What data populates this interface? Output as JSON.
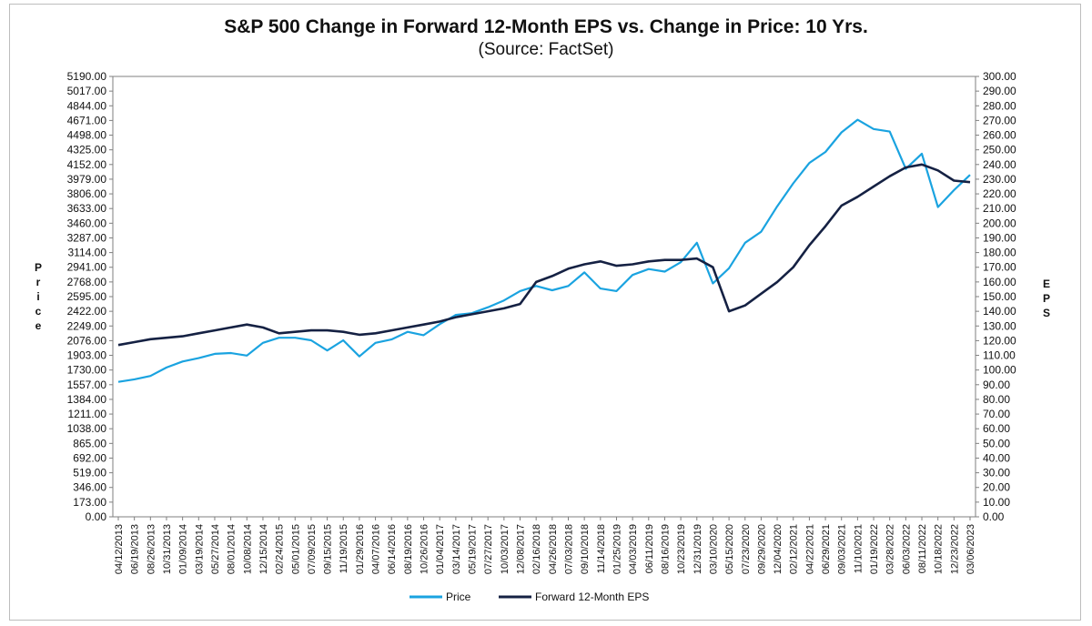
{
  "chart_data": {
    "type": "line",
    "title": "S&P 500 Change in Forward 12-Month EPS vs. Change in Price: 10 Yrs.",
    "subtitle": "(Source: FactSet)",
    "ylabel": "Price",
    "y2label": "EPS",
    "ylim": [
      0,
      5190
    ],
    "y2lim": [
      0,
      300
    ],
    "y_ticks": [
      "0.00",
      "173.00",
      "346.00",
      "519.00",
      "692.00",
      "865.00",
      "1038.00",
      "1211.00",
      "1384.00",
      "1557.00",
      "1730.00",
      "1903.00",
      "2076.00",
      "2249.00",
      "2422.00",
      "2595.00",
      "2768.00",
      "2941.00",
      "3114.00",
      "3287.00",
      "3460.00",
      "3633.00",
      "3806.00",
      "3979.00",
      "4152.00",
      "4325.00",
      "4498.00",
      "4671.00",
      "4844.00",
      "5017.00",
      "5190.00"
    ],
    "y2_ticks": [
      "0.00",
      "10.00",
      "20.00",
      "30.00",
      "40.00",
      "50.00",
      "60.00",
      "70.00",
      "80.00",
      "90.00",
      "100.00",
      "110.00",
      "120.00",
      "130.00",
      "140.00",
      "150.00",
      "160.00",
      "170.00",
      "180.00",
      "190.00",
      "200.00",
      "210.00",
      "220.00",
      "230.00",
      "240.00",
      "250.00",
      "260.00",
      "270.00",
      "280.00",
      "290.00",
      "300.00"
    ],
    "x_ticks": [
      "04/12/2013",
      "06/19/2013",
      "08/26/2013",
      "10/31/2013",
      "01/09/2014",
      "03/19/2014",
      "05/27/2014",
      "08/01/2014",
      "10/08/2014",
      "12/15/2014",
      "02/24/2015",
      "05/01/2015",
      "07/09/2015",
      "09/15/2015",
      "11/19/2015",
      "01/29/2016",
      "04/07/2016",
      "06/14/2016",
      "08/19/2016",
      "10/26/2016",
      "01/04/2017",
      "03/14/2017",
      "05/19/2017",
      "07/27/2017",
      "10/03/2017",
      "12/08/2017",
      "02/16/2018",
      "04/26/2018",
      "07/03/2018",
      "09/10/2018",
      "11/14/2018",
      "01/25/2019",
      "04/03/2019",
      "06/11/2019",
      "08/16/2019",
      "10/23/2019",
      "12/31/2019",
      "03/10/2020",
      "05/15/2020",
      "07/23/2020",
      "09/29/2020",
      "12/04/2020",
      "02/12/2021",
      "04/22/2021",
      "06/29/2021",
      "09/03/2021",
      "11/10/2021",
      "01/19/2022",
      "03/28/2022",
      "06/03/2022",
      "08/11/2022",
      "10/18/2022",
      "12/23/2022",
      "03/06/2023"
    ],
    "legend": "bottom-center",
    "grid": false,
    "series": [
      {
        "name": "Price",
        "axis": "left",
        "color": "#1aa3e0",
        "x": [
          "04/12/2013",
          "06/19/2013",
          "08/26/2013",
          "10/31/2013",
          "01/09/2014",
          "03/19/2014",
          "05/27/2014",
          "08/01/2014",
          "10/08/2014",
          "12/15/2014",
          "02/24/2015",
          "05/01/2015",
          "07/09/2015",
          "09/15/2015",
          "11/19/2015",
          "01/29/2016",
          "04/07/2016",
          "06/14/2016",
          "08/19/2016",
          "10/26/2016",
          "01/04/2017",
          "03/14/2017",
          "05/19/2017",
          "07/27/2017",
          "10/03/2017",
          "12/08/2017",
          "02/16/2018",
          "04/26/2018",
          "07/03/2018",
          "09/10/2018",
          "11/14/2018",
          "01/25/2019",
          "04/03/2019",
          "06/11/2019",
          "08/16/2019",
          "10/23/2019",
          "12/31/2019",
          "03/10/2020",
          "05/15/2020",
          "07/23/2020",
          "09/29/2020",
          "12/04/2020",
          "02/12/2021",
          "04/22/2021",
          "06/29/2021",
          "09/03/2021",
          "11/10/2021",
          "01/19/2022",
          "03/28/2022",
          "06/03/2022",
          "08/11/2022",
          "10/18/2022",
          "12/23/2022",
          "03/06/2023"
        ],
        "values": [
          1590,
          1620,
          1660,
          1760,
          1830,
          1870,
          1920,
          1930,
          1900,
          2050,
          2110,
          2110,
          2080,
          1960,
          2080,
          1890,
          2050,
          2090,
          2180,
          2140,
          2270,
          2380,
          2400,
          2470,
          2550,
          2660,
          2720,
          2670,
          2720,
          2880,
          2690,
          2660,
          2850,
          2920,
          2890,
          3000,
          3230,
          2750,
          2930,
          3230,
          3360,
          3660,
          3930,
          4170,
          4300,
          4530,
          4680,
          4570,
          4540,
          4100,
          4280,
          3650,
          3850,
          4030
        ]
      },
      {
        "name": "Forward 12-Month EPS",
        "axis": "right",
        "color": "#152143",
        "x": [
          "04/12/2013",
          "06/19/2013",
          "08/26/2013",
          "10/31/2013",
          "01/09/2014",
          "03/19/2014",
          "05/27/2014",
          "08/01/2014",
          "10/08/2014",
          "12/15/2014",
          "02/24/2015",
          "05/01/2015",
          "07/09/2015",
          "09/15/2015",
          "11/19/2015",
          "01/29/2016",
          "04/07/2016",
          "06/14/2016",
          "08/19/2016",
          "10/26/2016",
          "01/04/2017",
          "03/14/2017",
          "05/19/2017",
          "07/27/2017",
          "10/03/2017",
          "12/08/2017",
          "02/16/2018",
          "04/26/2018",
          "07/03/2018",
          "09/10/2018",
          "11/14/2018",
          "01/25/2019",
          "04/03/2019",
          "06/11/2019",
          "08/16/2019",
          "10/23/2019",
          "12/31/2019",
          "03/10/2020",
          "05/15/2020",
          "07/23/2020",
          "09/29/2020",
          "12/04/2020",
          "02/12/2021",
          "04/22/2021",
          "06/29/2021",
          "09/03/2021",
          "11/10/2021",
          "01/19/2022",
          "03/28/2022",
          "06/03/2022",
          "08/11/2022",
          "10/18/2022",
          "12/23/2022",
          "03/06/2023"
        ],
        "values": [
          117,
          119,
          121,
          122,
          123,
          125,
          127,
          129,
          131,
          129,
          125,
          126,
          127,
          127,
          126,
          124,
          125,
          127,
          129,
          131,
          133,
          136,
          138,
          140,
          142,
          145,
          160,
          164,
          169,
          172,
          174,
          171,
          172,
          174,
          175,
          175,
          176,
          170,
          140,
          144,
          152,
          160,
          170,
          185,
          198,
          212,
          218,
          225,
          232,
          238,
          240,
          236,
          229,
          228
        ]
      }
    ]
  }
}
